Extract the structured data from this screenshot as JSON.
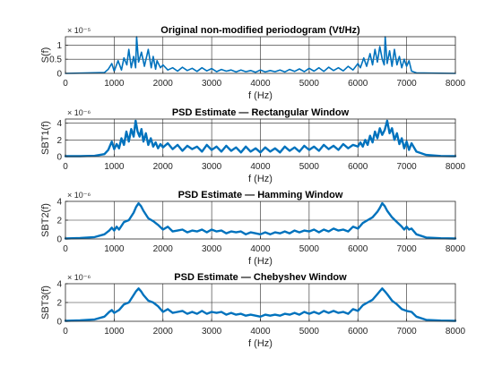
{
  "chart_data": [
    {
      "type": "line",
      "title": "Original non-modified periodogram (Vt/Hz)",
      "xlabel": "f (Hz)",
      "ylabel": "S(f)",
      "y_exponent": "× 10⁻⁵",
      "xlim": [
        0,
        8000
      ],
      "ylim": [
        0,
        1.3
      ],
      "x_ticks": [
        0,
        1000,
        2000,
        3000,
        4000,
        5000,
        6000,
        7000,
        8000
      ],
      "y_ticks": [
        0,
        0.5,
        1
      ],
      "y_tick_labels": [
        "0",
        "0.5",
        "1"
      ],
      "grid": true,
      "series": [
        {
          "color": "#0072BD",
          "x": [
            0,
            300,
            800,
            880,
            950,
            1000,
            1080,
            1150,
            1200,
            1260,
            1300,
            1350,
            1400,
            1440,
            1460,
            1500,
            1560,
            1620,
            1700,
            1760,
            1800,
            1850,
            1880,
            1950,
            2000,
            2100,
            2200,
            2300,
            2400,
            2500,
            2600,
            2700,
            2800,
            2900,
            3000,
            3100,
            3200,
            3300,
            3400,
            3500,
            3600,
            3700,
            3800,
            3900,
            4000,
            4100,
            4200,
            4300,
            4400,
            4500,
            4600,
            4700,
            4800,
            4900,
            5000,
            5100,
            5200,
            5300,
            5400,
            5500,
            5600,
            5700,
            5800,
            5900,
            6000,
            6050,
            6120,
            6180,
            6250,
            6300,
            6350,
            6400,
            6450,
            6500,
            6540,
            6560,
            6600,
            6650,
            6700,
            6750,
            6800,
            6850,
            6900,
            6950,
            7000,
            7050,
            7100,
            7200,
            7500,
            8000
          ],
          "y": [
            0,
            0.01,
            0.03,
            0.15,
            0.35,
            0.08,
            0.45,
            0.12,
            0.55,
            0.3,
            0.85,
            0.2,
            0.6,
            0.2,
            1.3,
            0.4,
            0.75,
            0.25,
            0.85,
            0.2,
            0.6,
            0.15,
            0.45,
            0.2,
            0.3,
            0.12,
            0.2,
            0.08,
            0.22,
            0.1,
            0.18,
            0.07,
            0.2,
            0.09,
            0.17,
            0.06,
            0.14,
            0.08,
            0.12,
            0.05,
            0.12,
            0.06,
            0.1,
            0.04,
            0.12,
            0.05,
            0.1,
            0.06,
            0.12,
            0.05,
            0.14,
            0.07,
            0.16,
            0.06,
            0.18,
            0.08,
            0.2,
            0.07,
            0.22,
            0.1,
            0.2,
            0.09,
            0.25,
            0.12,
            0.35,
            0.2,
            0.55,
            0.25,
            0.7,
            0.3,
            0.85,
            0.4,
            0.95,
            0.5,
            0.3,
            1.3,
            0.35,
            0.8,
            0.25,
            0.85,
            0.3,
            0.6,
            0.2,
            0.5,
            0.25,
            0.45,
            0.08,
            0.02,
            0.01,
            0
          ]
        }
      ]
    },
    {
      "type": "line",
      "title": "PSD Estimate — Rectangular Window",
      "xlabel": "f (Hz)",
      "ylabel": "SBT1(f)",
      "y_exponent": "× 10⁻⁶",
      "xlim": [
        0,
        8000
      ],
      "ylim": [
        0,
        4.5
      ],
      "x_ticks": [
        0,
        1000,
        2000,
        3000,
        4000,
        5000,
        6000,
        7000,
        8000
      ],
      "y_ticks": [
        0,
        2,
        4
      ],
      "y_tick_labels": [
        "0",
        "2",
        "4"
      ],
      "grid": true,
      "series": [
        {
          "color": "#0072BD",
          "x": [
            0,
            300,
            600,
            800,
            880,
            950,
            1000,
            1050,
            1100,
            1150,
            1200,
            1250,
            1300,
            1350,
            1400,
            1440,
            1480,
            1520,
            1560,
            1600,
            1650,
            1700,
            1750,
            1800,
            1850,
            1900,
            1950,
            2000,
            2100,
            2200,
            2300,
            2400,
            2500,
            2600,
            2700,
            2800,
            2900,
            3000,
            3100,
            3200,
            3300,
            3400,
            3500,
            3600,
            3700,
            3800,
            3900,
            4000,
            4100,
            4200,
            4300,
            4400,
            4500,
            4600,
            4700,
            4800,
            4900,
            5000,
            5100,
            5200,
            5300,
            5400,
            5500,
            5600,
            5700,
            5800,
            5900,
            6000,
            6050,
            6100,
            6150,
            6200,
            6250,
            6300,
            6350,
            6400,
            6450,
            6500,
            6550,
            6600,
            6650,
            6700,
            6750,
            6800,
            6850,
            6900,
            6950,
            7000,
            7050,
            7100,
            7200,
            7400,
            7700,
            8000
          ],
          "y": [
            0.05,
            0.05,
            0.1,
            0.3,
            0.8,
            1.8,
            0.9,
            1.5,
            1.0,
            2.2,
            1.4,
            3.0,
            1.8,
            3.3,
            2.4,
            4.3,
            3.0,
            2.4,
            3.3,
            1.8,
            2.8,
            1.4,
            2.2,
            1.2,
            1.7,
            1.0,
            1.5,
            1.1,
            1.6,
            0.9,
            1.4,
            0.7,
            1.3,
            0.9,
            1.2,
            0.6,
            1.4,
            0.8,
            1.2,
            0.6,
            1.3,
            0.7,
            1.1,
            0.5,
            1.2,
            0.6,
            1.0,
            0.5,
            1.1,
            0.6,
            1.0,
            0.5,
            1.2,
            0.7,
            1.1,
            0.6,
            1.3,
            0.8,
            1.2,
            0.7,
            1.4,
            0.9,
            1.3,
            0.8,
            1.5,
            1.0,
            1.4,
            1.2,
            1.7,
            1.2,
            2.0,
            1.4,
            2.5,
            1.7,
            3.0,
            2.2,
            3.4,
            2.6,
            3.2,
            4.3,
            2.8,
            3.4,
            2.0,
            2.8,
            1.5,
            2.2,
            1.0,
            1.8,
            0.8,
            1.6,
            0.6,
            0.2,
            0.08,
            0.05
          ]
        }
      ]
    },
    {
      "type": "line",
      "title": "PSD Estimate — Hamming Window",
      "xlabel": "f (Hz)",
      "ylabel": "SBT2(f)",
      "y_exponent": "× 10⁻⁶",
      "xlim": [
        0,
        8000
      ],
      "ylim": [
        0,
        4
      ],
      "x_ticks": [
        0,
        1000,
        2000,
        3000,
        4000,
        5000,
        6000,
        7000,
        8000
      ],
      "y_ticks": [
        0,
        2,
        4
      ],
      "y_tick_labels": [
        "0",
        "2",
        "4"
      ],
      "grid": true,
      "series": [
        {
          "color": "#0072BD",
          "x": [
            0,
            300,
            600,
            800,
            900,
            950,
            1000,
            1050,
            1100,
            1200,
            1300,
            1400,
            1450,
            1500,
            1550,
            1600,
            1700,
            1800,
            1900,
            2000,
            2100,
            2200,
            2300,
            2400,
            2500,
            2600,
            2700,
            2800,
            2900,
            3000,
            3100,
            3200,
            3300,
            3400,
            3500,
            3600,
            3700,
            3800,
            3900,
            4000,
            4100,
            4200,
            4300,
            4400,
            4500,
            4600,
            4700,
            4800,
            4900,
            5000,
            5100,
            5200,
            5300,
            5400,
            5500,
            5600,
            5700,
            5800,
            5900,
            6000,
            6050,
            6100,
            6200,
            6300,
            6400,
            6450,
            6500,
            6550,
            6600,
            6700,
            6800,
            6900,
            6950,
            7000,
            7050,
            7100,
            7200,
            7400,
            7700,
            8000
          ],
          "y": [
            0.05,
            0.1,
            0.2,
            0.5,
            0.9,
            1.2,
            0.9,
            1.3,
            1.0,
            1.8,
            2.0,
            2.8,
            3.4,
            3.8,
            3.5,
            3.0,
            2.2,
            1.9,
            1.5,
            1.0,
            1.3,
            0.8,
            0.9,
            1.0,
            0.7,
            0.9,
            0.8,
            1.0,
            0.7,
            1.0,
            0.8,
            0.9,
            0.6,
            0.8,
            0.7,
            0.8,
            0.5,
            0.7,
            0.6,
            0.5,
            0.7,
            0.5,
            0.7,
            0.6,
            0.8,
            0.6,
            0.9,
            0.7,
            0.9,
            0.8,
            1.0,
            0.7,
            1.0,
            0.8,
            1.1,
            0.9,
            1.0,
            0.8,
            1.3,
            1.1,
            1.4,
            1.7,
            2.0,
            2.3,
            2.9,
            3.3,
            3.8,
            3.5,
            3.0,
            2.3,
            1.8,
            1.3,
            1.0,
            1.3,
            1.0,
            1.1,
            0.5,
            0.15,
            0.08,
            0.05
          ]
        }
      ]
    },
    {
      "type": "line",
      "title": "PSD Estimate — Chebyshev Window",
      "xlabel": "f (Hz)",
      "ylabel": "SBT3(f)",
      "y_exponent": "× 10⁻⁶",
      "xlim": [
        0,
        8000
      ],
      "ylim": [
        0,
        4
      ],
      "x_ticks": [
        0,
        1000,
        2000,
        3000,
        4000,
        5000,
        6000,
        7000,
        8000
      ],
      "y_ticks": [
        0,
        2,
        4
      ],
      "y_tick_labels": [
        "0",
        "2",
        "4"
      ],
      "grid": true,
      "series": [
        {
          "color": "#0072BD",
          "x": [
            0,
            300,
            600,
            800,
            900,
            950,
            1000,
            1100,
            1200,
            1300,
            1400,
            1450,
            1500,
            1550,
            1600,
            1700,
            1800,
            1900,
            2000,
            2100,
            2200,
            2300,
            2400,
            2500,
            2600,
            2700,
            2800,
            2900,
            3000,
            3100,
            3200,
            3300,
            3400,
            3500,
            3600,
            3700,
            3800,
            3900,
            4000,
            4100,
            4200,
            4300,
            4400,
            4500,
            4600,
            4700,
            4800,
            4900,
            5000,
            5100,
            5200,
            5300,
            5400,
            5500,
            5600,
            5700,
            5800,
            5900,
            6000,
            6100,
            6200,
            6300,
            6400,
            6450,
            6500,
            6550,
            6600,
            6700,
            6800,
            6900,
            7000,
            7100,
            7200,
            7400,
            7700,
            8000
          ],
          "y": [
            0.05,
            0.1,
            0.2,
            0.5,
            1.0,
            1.2,
            0.9,
            1.2,
            1.8,
            2.0,
            2.8,
            3.2,
            3.5,
            3.2,
            2.8,
            2.2,
            2.0,
            1.6,
            1.0,
            1.3,
            0.9,
            1.0,
            1.1,
            0.8,
            1.0,
            0.8,
            1.1,
            0.8,
            1.0,
            0.9,
            1.0,
            0.7,
            0.9,
            0.7,
            0.8,
            0.6,
            0.7,
            0.6,
            0.5,
            0.7,
            0.6,
            0.7,
            0.6,
            0.8,
            0.7,
            0.9,
            0.7,
            1.0,
            0.8,
            1.0,
            0.8,
            1.1,
            0.9,
            1.1,
            0.9,
            1.0,
            0.8,
            1.3,
            1.1,
            1.7,
            2.0,
            2.3,
            2.9,
            3.2,
            3.5,
            3.2,
            2.9,
            2.2,
            1.8,
            1.3,
            1.1,
            1.0,
            0.5,
            0.15,
            0.08,
            0.05
          ]
        }
      ]
    }
  ]
}
